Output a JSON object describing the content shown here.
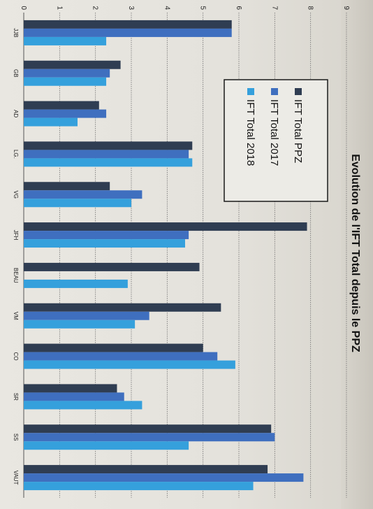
{
  "chart_data": {
    "type": "bar",
    "orientation": "rotated-clockwise",
    "title": "Evolution de l'IFT Total depuis le PPZ",
    "xlabel": "",
    "ylabel": "",
    "categories": [
      "JJB",
      "GB",
      "AD",
      "LG.",
      "VG",
      "JFH",
      "BEAU",
      "VM",
      "CO",
      "SR",
      "SS",
      "VAUT"
    ],
    "ylim": [
      0,
      9
    ],
    "yticks": [
      "0",
      "1",
      "2",
      "3",
      "4",
      "5",
      "6",
      "7",
      "8",
      "9"
    ],
    "grid": true,
    "legend_position": "top-right",
    "series": [
      {
        "name": "IFT Total PPZ",
        "color": "#2f3d52",
        "values": [
          5.8,
          2.7,
          2.1,
          4.7,
          2.4,
          7.9,
          4.9,
          5.5,
          5.0,
          2.6,
          6.9,
          6.8
        ]
      },
      {
        "name": "IFT Total 2017",
        "color": "#3f6fbf",
        "values": [
          5.8,
          2.4,
          2.3,
          4.6,
          3.3,
          4.6,
          0,
          3.5,
          5.4,
          2.8,
          7.0,
          7.8
        ]
      },
      {
        "name": "IFT Total 2018",
        "color": "#35a0dc",
        "values": [
          2.3,
          2.3,
          1.5,
          4.7,
          3.0,
          4.5,
          2.9,
          3.1,
          5.9,
          3.3,
          4.6,
          6.4
        ]
      }
    ]
  }
}
